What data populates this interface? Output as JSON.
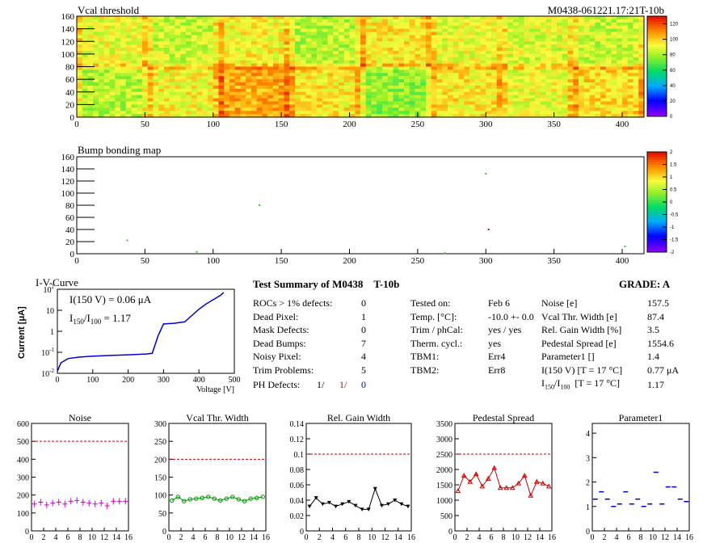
{
  "maps": {
    "vcal": {
      "title": "Vcal threshold",
      "module_id": "M0438-061221.17:21T-10b",
      "x_ticks": [
        "0",
        "50",
        "100",
        "150",
        "200",
        "250",
        "300",
        "350",
        "400"
      ],
      "y_ticks": [
        "0",
        "20",
        "40",
        "60",
        "80",
        "100",
        "120",
        "140",
        "160"
      ],
      "xlim": [
        0,
        416
      ],
      "ylim": [
        0,
        160
      ],
      "colorbar_ticks": [
        "0",
        "20",
        "40",
        "60",
        "80",
        "100",
        "120"
      ],
      "colorbar_range": [
        0,
        130
      ]
    },
    "bump": {
      "title": "Bump bonding map",
      "x_ticks": [
        "0",
        "50",
        "100",
        "150",
        "200",
        "250",
        "300",
        "350",
        "400"
      ],
      "y_ticks": [
        "0",
        "20",
        "40",
        "60",
        "80",
        "100",
        "120",
        "140",
        "160"
      ],
      "xlim": [
        0,
        416
      ],
      "ylim": [
        0,
        160
      ],
      "colorbar_ticks": [
        "2",
        "1.5",
        "1",
        "0.5",
        "0",
        "-0.5",
        "-1",
        "-1.5",
        "-2"
      ],
      "colorbar_range": [
        -2,
        2
      ]
    }
  },
  "iv": {
    "title": "I-V-Curve",
    "ylabel": "Current [μA]",
    "xlabel": "Voltage [V]",
    "annotation_1": "I(150 V) = 0.06 μA",
    "annotation_2_a": "I",
    "annotation_2_sub_a": "150",
    "annotation_2_b": "/I",
    "annotation_2_sub_b": "100",
    "annotation_2_c": " =  1.17",
    "x_ticks": [
      "0",
      "100",
      "200",
      "300",
      "400",
      "500"
    ],
    "y_tick_base": "10",
    "y_tick_exps": [
      "2",
      "",
      "",
      "-1",
      "-2"
    ],
    "y_tick_labels_plain": [
      "1",
      "10"
    ]
  },
  "summary": {
    "title": "Test Summary of M0438",
    "tag": "T-10b",
    "grade": "GRADE:  A",
    "defects": [
      {
        "label": "ROCs > 1% defects:",
        "value": "0"
      },
      {
        "label": "Dead Pixel:",
        "value": "1"
      },
      {
        "label": "Mask Defects:",
        "value": "0"
      },
      {
        "label": "Dead Bumps:",
        "value": "7"
      },
      {
        "label": "Noisy Pixel:",
        "value": "4"
      },
      {
        "label": "Trim Problems:",
        "value": "5"
      }
    ],
    "ph_label": "PH Defects:",
    "ph_values": [
      "1/",
      "1/",
      "0"
    ],
    "ph_colors": [
      "#000000",
      "#cc0000",
      "#0000cc"
    ],
    "tests": [
      {
        "label": "Tested on:",
        "value": "Feb 6"
      },
      {
        "label": "Temp. [°C]:",
        "value": "-10.0 +- 0.0"
      },
      {
        "label": "Trim / phCal:",
        "value": "yes / yes"
      },
      {
        "label": "Therm. cycl.:",
        "value": "yes"
      },
      {
        "label": "TBM1:",
        "value": "Err4"
      },
      {
        "label": "TBM2:",
        "value": "Err8"
      }
    ],
    "params": [
      {
        "label": "Noise [e]",
        "value": "157.5"
      },
      {
        "label": "Vcal Thr. Width [e]",
        "value": "87.4"
      },
      {
        "label": "Rel. Gain Width [%]",
        "value": "3.5"
      },
      {
        "label": "Pedestal Spread [e]",
        "value": "1554.6"
      },
      {
        "label": "Parameter1 []",
        "value": "1.4"
      },
      {
        "label": "I(150 V) [T = 17 °C]",
        "value": "0.77 μA"
      }
    ],
    "ratio_row": {
      "a": "I",
      "sub_a": "150",
      "b": "/I",
      "sub_b": "100",
      "c": "  [T = 17 °C]",
      "value": "1.17"
    }
  },
  "chart_data": [
    {
      "type": "scatter",
      "title": "Noise",
      "x": [
        0,
        1,
        2,
        3,
        4,
        5,
        6,
        7,
        8,
        9,
        10,
        11,
        12,
        13,
        14,
        15
      ],
      "values": [
        150,
        160,
        145,
        155,
        160,
        150,
        165,
        170,
        160,
        155,
        150,
        155,
        140,
        165,
        165,
        165
      ],
      "ylim": [
        0,
        600
      ],
      "y_ticks": [
        "0",
        "100",
        "200",
        "300",
        "400",
        "500",
        "600"
      ],
      "threshold": 500,
      "color": "#cc00cc",
      "marker": "cross"
    },
    {
      "type": "line",
      "title": "Vcal Thr. Width",
      "x": [
        0,
        1,
        2,
        3,
        4,
        5,
        6,
        7,
        8,
        9,
        10,
        11,
        12,
        13,
        14,
        15
      ],
      "values": [
        85,
        95,
        83,
        88,
        90,
        92,
        95,
        90,
        85,
        90,
        95,
        88,
        83,
        90,
        92,
        95
      ],
      "ylim": [
        0,
        300
      ],
      "y_ticks": [
        "0",
        "50",
        "100",
        "150",
        "200",
        "250",
        "300"
      ],
      "threshold": 200,
      "color": "#009900",
      "marker": "circle"
    },
    {
      "type": "line",
      "title": "Rel. Gain Width",
      "x": [
        0,
        1,
        2,
        3,
        4,
        5,
        6,
        7,
        8,
        9,
        10,
        11,
        12,
        13,
        14,
        15
      ],
      "values": [
        0.032,
        0.043,
        0.035,
        0.037,
        0.032,
        0.035,
        0.038,
        0.033,
        0.028,
        0.028,
        0.055,
        0.033,
        0.035,
        0.04,
        0.035,
        0.032
      ],
      "ylim": [
        0,
        0.14
      ],
      "y_ticks": [
        "0",
        "0.02",
        "0.04",
        "0.06",
        "0.08",
        "0.1",
        "0.12",
        "0.14"
      ],
      "threshold": 0.1,
      "color": "#000000",
      "marker": "triangle-down"
    },
    {
      "type": "line",
      "title": "Pedestal Spread",
      "x": [
        0,
        1,
        2,
        3,
        4,
        5,
        6,
        7,
        8,
        9,
        10,
        11,
        12,
        13,
        14,
        15
      ],
      "values": [
        1300,
        1800,
        1600,
        1850,
        1450,
        1700,
        2050,
        1400,
        1400,
        1400,
        1550,
        1800,
        1150,
        1600,
        1550,
        1450
      ],
      "ylim": [
        0,
        3500
      ],
      "y_ticks": [
        "0",
        "500",
        "1000",
        "1500",
        "2000",
        "2500",
        "3000",
        "3500"
      ],
      "threshold": 2500,
      "color": "#cc0000",
      "marker": "triangle-up"
    },
    {
      "type": "scatter",
      "title": "Parameter1",
      "x": [
        0,
        1,
        2,
        3,
        4,
        5,
        6,
        7,
        8,
        9,
        10,
        11,
        12,
        13,
        14,
        15
      ],
      "values": [
        1.3,
        1.6,
        1.3,
        1.0,
        1.1,
        1.6,
        1.1,
        1.3,
        1.0,
        1.1,
        2.4,
        1.1,
        1.8,
        1.8,
        1.3,
        1.2
      ],
      "ylim": [
        0,
        4.4
      ],
      "y_ticks": [
        "0",
        "1",
        "2",
        "3",
        "4"
      ],
      "threshold": null,
      "color": "#0000cc",
      "marker": "hline"
    }
  ],
  "bottom_x_ticks": [
    "0",
    "2",
    "4",
    "6",
    "8",
    "10",
    "12",
    "14",
    "16"
  ]
}
